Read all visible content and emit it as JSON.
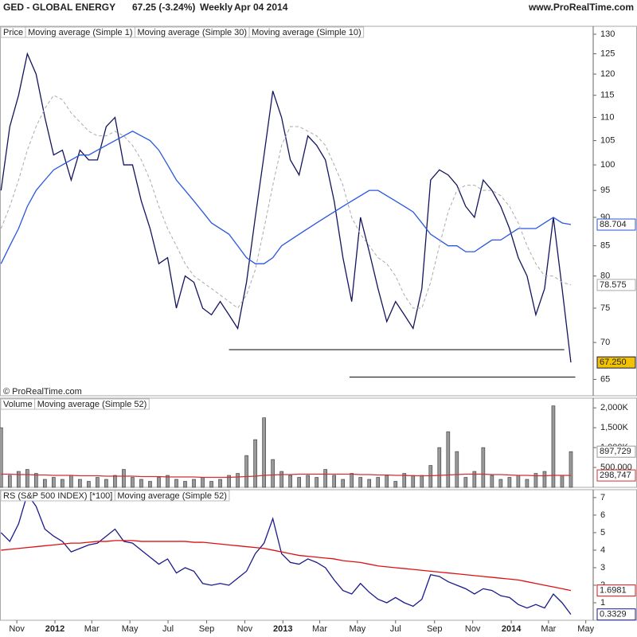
{
  "header": {
    "symbol": "GED - GLOBAL ENERGY",
    "quote": "67.25 (-3.24%)",
    "period": "Weekly",
    "date": "Apr 04 2014",
    "site": "www.ProRealTime.com"
  },
  "copyright": "© ProRealTime.com",
  "chart_data": [
    {
      "type": "line",
      "log_scale": true,
      "legend_label": "Price",
      "xlim": [
        0,
        135
      ],
      "ylim": [
        62.9,
        132.1
      ],
      "yticks": [
        65,
        70,
        75,
        80,
        85,
        90,
        95,
        100,
        105,
        110,
        115,
        120,
        125,
        130
      ],
      "x": [
        0,
        2,
        4,
        6,
        8,
        10,
        12,
        14,
        16,
        18,
        20,
        22,
        24,
        26,
        28,
        30,
        32,
        34,
        36,
        38,
        40,
        42,
        44,
        46,
        48,
        50,
        52,
        54,
        56,
        58,
        60,
        62,
        64,
        66,
        68,
        70,
        72,
        74,
        76,
        78,
        80,
        82,
        84,
        86,
        88,
        90,
        92,
        94,
        96,
        98,
        100,
        102,
        104,
        106,
        108,
        110,
        112,
        114,
        116,
        118,
        120,
        122,
        124,
        126,
        128,
        130
      ],
      "levels": [
        {
          "value": 69,
          "from": 52,
          "to": 128.5
        },
        {
          "value": 65.3,
          "from": 79.5,
          "to": 131
        }
      ],
      "series": [
        {
          "name": "Moving average (Simple 1)",
          "type": "line",
          "color": "#14145e",
          "last_label": "67.250",
          "label_fill": "#f2c200",
          "values": [
            95,
            108,
            115,
            125,
            120,
            110,
            102,
            103,
            97,
            103,
            101,
            101,
            108,
            110,
            100,
            100,
            93,
            88,
            82,
            83,
            75,
            80,
            79,
            75,
            74,
            76,
            74,
            72,
            79,
            90,
            102,
            116,
            110,
            101,
            98,
            106,
            104,
            101,
            93,
            83,
            76,
            90,
            84,
            78,
            73,
            76,
            74,
            72,
            78,
            97,
            99,
            98,
            96,
            92,
            90,
            97,
            95,
            92,
            88,
            83,
            80,
            74,
            78,
            90,
            78,
            67.25
          ]
        },
        {
          "name": "Moving average (Simple 30)",
          "type": "line",
          "color": "#2a56e0",
          "last_label": "88.704",
          "values": [
            82,
            85,
            88,
            92,
            95,
            97,
            99,
            100,
            101,
            102,
            102,
            103,
            104,
            105,
            106,
            107,
            106,
            105,
            103,
            100,
            97,
            95,
            93,
            91,
            89,
            88,
            87,
            85,
            83,
            82,
            82,
            83,
            85,
            86,
            87,
            88,
            89,
            90,
            91,
            92,
            93,
            94,
            95,
            95,
            94,
            93,
            92,
            91,
            89,
            87,
            86,
            85,
            85,
            84,
            84,
            85,
            86,
            86,
            87,
            88,
            88,
            88,
            89,
            90,
            89,
            88.704
          ]
        },
        {
          "name": "Moving average (Simple 10)",
          "type": "dashed",
          "color": "#aaaaaa",
          "last_label": "78.575",
          "values": [
            88,
            92,
            97,
            103,
            108,
            112,
            115,
            114,
            111,
            109,
            107,
            106,
            106,
            107,
            106,
            104,
            101,
            97,
            92,
            88,
            85,
            82,
            80,
            79,
            78,
            77,
            76,
            75,
            77,
            81,
            88,
            96,
            104,
            108,
            108,
            107,
            106,
            104,
            100,
            96,
            90,
            87,
            85,
            83,
            82,
            80,
            77,
            75,
            75,
            79,
            85,
            91,
            95,
            96,
            96,
            95,
            95,
            94,
            92,
            89,
            85,
            82,
            80,
            80,
            79,
            78.575
          ]
        }
      ]
    },
    {
      "type": "bar",
      "xlim": [
        0,
        135
      ],
      "ylim": [
        0,
        2245000
      ],
      "yticks": [
        {
          "value": 500000,
          "label": "500,000"
        },
        {
          "value": 1000000,
          "label": "1,000K"
        },
        {
          "value": 1500000,
          "label": "1,500K"
        },
        {
          "value": 2000000,
          "label": "2,000K"
        }
      ],
      "x": [
        0,
        2,
        4,
        6,
        8,
        10,
        12,
        14,
        16,
        18,
        20,
        22,
        24,
        26,
        28,
        30,
        32,
        34,
        36,
        38,
        40,
        42,
        44,
        46,
        48,
        50,
        52,
        54,
        56,
        58,
        60,
        62,
        64,
        66,
        68,
        70,
        72,
        74,
        76,
        78,
        80,
        82,
        84,
        86,
        88,
        90,
        92,
        94,
        96,
        98,
        100,
        102,
        104,
        106,
        108,
        110,
        112,
        114,
        116,
        118,
        120,
        122,
        124,
        126,
        128,
        130
      ],
      "series": [
        {
          "name": "Volume",
          "type": "bar",
          "color": "#999999",
          "last_label": "897,729",
          "values": [
            1500000,
            300000,
            400000,
            450000,
            350000,
            200000,
            250000,
            200000,
            300000,
            200000,
            150000,
            250000,
            200000,
            300000,
            450000,
            250000,
            200000,
            150000,
            250000,
            300000,
            200000,
            150000,
            200000,
            250000,
            150000,
            200000,
            300000,
            350000,
            800000,
            1200000,
            1750000,
            700000,
            400000,
            300000,
            250000,
            300000,
            250000,
            450000,
            300000,
            200000,
            350000,
            250000,
            200000,
            250000,
            300000,
            150000,
            350000,
            300000,
            300000,
            550000,
            1000000,
            1400000,
            900000,
            250000,
            400000,
            1000000,
            300000,
            200000,
            250000,
            300000,
            200000,
            350000,
            400000,
            2050000,
            300000,
            897729
          ]
        },
        {
          "name": "Moving average (Simple 52)",
          "type": "line",
          "color": "#d03030",
          "last_label": "298,747",
          "values": [
            330000,
            330000,
            320000,
            320000,
            310000,
            310000,
            300000,
            300000,
            300000,
            290000,
            290000,
            290000,
            280000,
            280000,
            280000,
            280000,
            270000,
            270000,
            270000,
            260000,
            260000,
            260000,
            260000,
            250000,
            250000,
            250000,
            250000,
            260000,
            270000,
            280000,
            300000,
            310000,
            320000,
            320000,
            330000,
            330000,
            330000,
            330000,
            330000,
            330000,
            330000,
            320000,
            320000,
            310000,
            310000,
            300000,
            300000,
            290000,
            290000,
            290000,
            300000,
            310000,
            320000,
            330000,
            330000,
            330000,
            320000,
            320000,
            310000,
            300000,
            300000,
            290000,
            290000,
            300000,
            300000,
            298747
          ]
        }
      ]
    },
    {
      "type": "line",
      "xlim": [
        0,
        135
      ],
      "ylim": [
        0,
        7.45
      ],
      "yticks": [
        1,
        2,
        3,
        4,
        5,
        6,
        7
      ],
      "xticks": [
        {
          "value": 3.6,
          "label": "Nov"
        },
        {
          "value": 12.3,
          "label": "2012"
        },
        {
          "value": 20.7,
          "label": "Mar"
        },
        {
          "value": 29.4,
          "label": "May"
        },
        {
          "value": 38.1,
          "label": "Jul"
        },
        {
          "value": 46.9,
          "label": "Sep"
        },
        {
          "value": 55.6,
          "label": "Nov"
        },
        {
          "value": 64.3,
          "label": "2013"
        },
        {
          "value": 72.7,
          "label": "Mar"
        },
        {
          "value": 81.3,
          "label": "May"
        },
        {
          "value": 90,
          "label": "Jul"
        },
        {
          "value": 98.9,
          "label": "Sep"
        },
        {
          "value": 107.6,
          "label": "Nov"
        },
        {
          "value": 116.4,
          "label": "2014"
        },
        {
          "value": 124.9,
          "label": "Mar"
        },
        {
          "value": 133.4,
          "label": "May"
        }
      ],
      "x": [
        0,
        2,
        4,
        6,
        8,
        10,
        12,
        14,
        16,
        18,
        20,
        22,
        24,
        26,
        28,
        30,
        32,
        34,
        36,
        38,
        40,
        42,
        44,
        46,
        48,
        50,
        52,
        54,
        56,
        58,
        60,
        62,
        64,
        66,
        68,
        70,
        72,
        74,
        76,
        78,
        80,
        82,
        84,
        86,
        88,
        90,
        92,
        94,
        96,
        98,
        100,
        102,
        104,
        106,
        108,
        110,
        112,
        114,
        116,
        118,
        120,
        122,
        124,
        126,
        128,
        130
      ],
      "series": [
        {
          "name": "RS (S&P 500 INDEX) [*100]",
          "type": "line",
          "color": "#1a1a8a",
          "last_label": "0.3329",
          "values": [
            5.0,
            4.5,
            5.5,
            7.2,
            6.5,
            5.2,
            4.8,
            4.5,
            3.9,
            4.1,
            4.3,
            4.4,
            4.8,
            5.2,
            4.5,
            4.4,
            4.0,
            3.6,
            3.2,
            3.5,
            2.7,
            3.0,
            2.8,
            2.1,
            2.0,
            2.1,
            2.0,
            2.4,
            2.8,
            3.8,
            4.4,
            5.8,
            3.8,
            3.3,
            3.2,
            3.5,
            3.3,
            3.0,
            2.3,
            1.7,
            1.5,
            2.1,
            1.6,
            1.2,
            1.0,
            1.3,
            1.0,
            0.8,
            1.2,
            2.6,
            2.5,
            2.2,
            2.0,
            1.8,
            1.5,
            1.8,
            1.7,
            1.4,
            1.3,
            0.9,
            0.7,
            0.9,
            0.7,
            1.5,
            1.0,
            0.3329
          ]
        },
        {
          "name": "Moving average (Simple 52)",
          "type": "line",
          "color": "#dd1111",
          "last_label": "1.6981",
          "values": [
            4.0,
            4.05,
            4.1,
            4.15,
            4.2,
            4.25,
            4.3,
            4.35,
            4.4,
            4.4,
            4.45,
            4.5,
            4.5,
            4.55,
            4.55,
            4.55,
            4.5,
            4.5,
            4.5,
            4.5,
            4.5,
            4.5,
            4.45,
            4.45,
            4.4,
            4.35,
            4.3,
            4.25,
            4.2,
            4.15,
            4.1,
            4.0,
            3.9,
            3.8,
            3.7,
            3.65,
            3.6,
            3.55,
            3.5,
            3.4,
            3.35,
            3.3,
            3.2,
            3.1,
            3.05,
            3.0,
            2.95,
            2.9,
            2.85,
            2.8,
            2.75,
            2.7,
            2.65,
            2.6,
            2.55,
            2.5,
            2.45,
            2.4,
            2.35,
            2.3,
            2.2,
            2.1,
            2.0,
            1.9,
            1.8,
            1.6981
          ]
        }
      ]
    }
  ]
}
